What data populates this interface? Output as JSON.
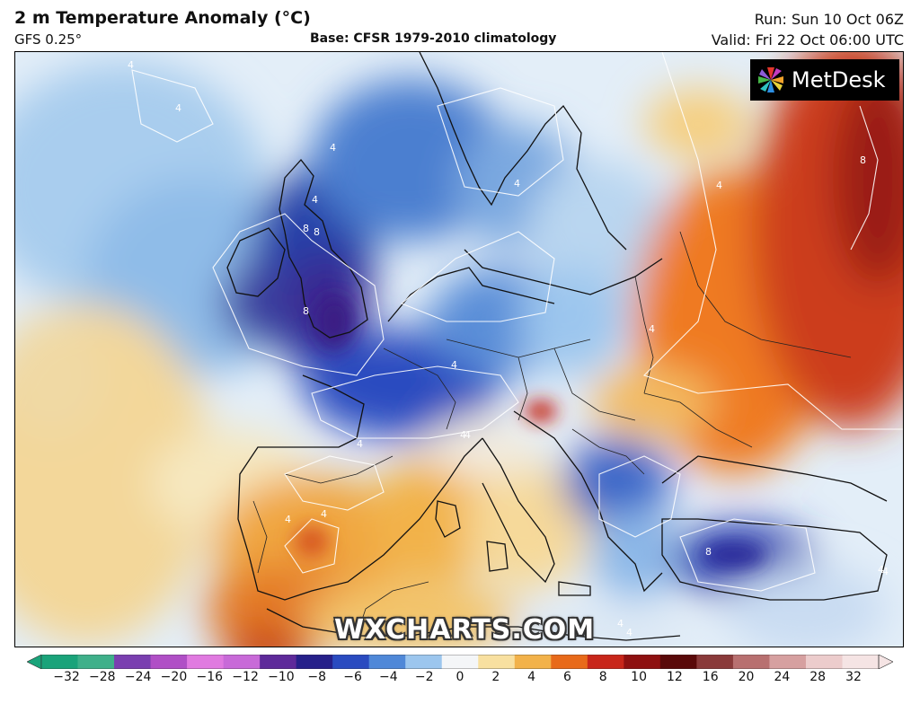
{
  "header": {
    "title": "2 m Temperature Anomaly (°C)",
    "model": "GFS 0.25°",
    "base": "Base: CFSR 1979-2010 climatology",
    "run": "Run: Sun 10 Oct 06Z",
    "valid": "Valid: Fri 22 Oct 06:00 UTC"
  },
  "logo": {
    "text": "MetDesk",
    "icon": "metdesk-pinwheel-icon"
  },
  "watermark": "WXCHARTS.COM",
  "legend": {
    "ticks": [
      "−32",
      "−28",
      "−24",
      "−20",
      "−16",
      "−12",
      "−10",
      "−8",
      "−6",
      "−4",
      "−2",
      "0",
      "2",
      "4",
      "6",
      "8",
      "10",
      "12",
      "16",
      "20",
      "24",
      "28",
      "32"
    ],
    "colors": [
      "#1aa37a",
      "#3fb08a",
      "#7a3fb0",
      "#b04fc6",
      "#e07ae0",
      "#c86ad8",
      "#5e2a9a",
      "#26208a",
      "#2a4bc0",
      "#4f88d8",
      "#9cc6ee",
      "#f4f6f8",
      "#f8e0a0",
      "#f2b24a",
      "#e86a1a",
      "#c8261a",
      "#8e1010",
      "#5a0a0a",
      "#8a3a3a",
      "#b87070",
      "#d6a0a0",
      "#eccccc",
      "#f5e4e4"
    ]
  },
  "map": {
    "contour_labels": [
      "4",
      "4",
      "4",
      "4",
      "8",
      "8",
      "8",
      "4",
      "4",
      "4",
      "4",
      "4",
      "4",
      "8",
      "4",
      "4",
      "8",
      "4",
      "4",
      "4",
      "4",
      "4"
    ]
  }
}
